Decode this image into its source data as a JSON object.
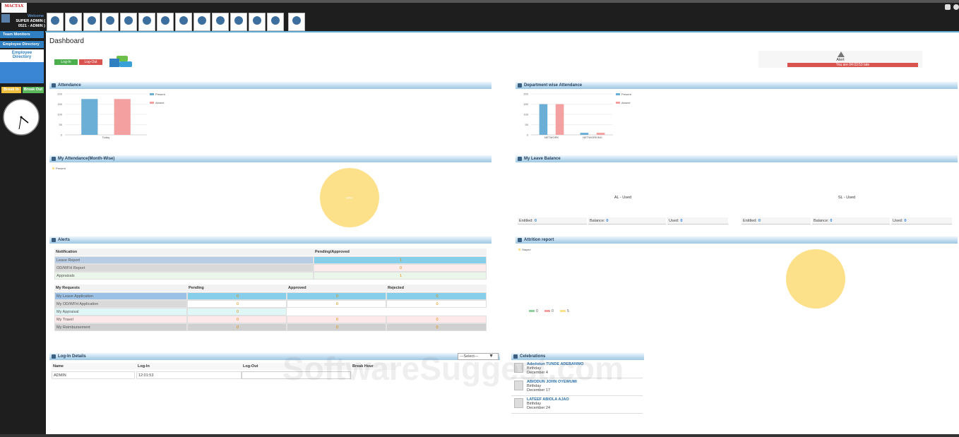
{
  "header": {
    "logo": "MACTAX",
    "welcome": "Welcome",
    "user": "SUPER ADMIN (",
    "role": "0521 - ADMIN )"
  },
  "sidebar": {
    "team_monitors": "Team Monitors",
    "employee_directory": "Employee Directory",
    "employee_directory_link": "Employee Directory",
    "break_in": "Break In",
    "break_out": "Break Out"
  },
  "page_title": "Dashboard",
  "buttons": {
    "log_in": "Log-In",
    "log_out": "Log-Out"
  },
  "alert": {
    "title": "Alert",
    "message": "You are 04:03:53 late"
  },
  "panels": {
    "my_leave_balance": "My Leave Balance",
    "alerts": "Alerts"
  },
  "leave_balance": [
    {
      "label": "AL - Used",
      "fields": [
        {
          "name": "Entitled:",
          "value": "0"
        },
        {
          "name": "Balance:",
          "value": "0"
        },
        {
          "name": "Used:",
          "value": "0"
        }
      ]
    },
    {
      "label": "SL - Used",
      "fields": [
        {
          "name": "Entitled:",
          "value": "0"
        },
        {
          "name": "Balance:",
          "value": "0"
        },
        {
          "name": "Used:",
          "value": "0"
        }
      ]
    }
  ],
  "alerts_table": {
    "header": [
      "Notification",
      "Pending/Approved"
    ],
    "rows": [
      [
        "Leave Report",
        "1"
      ],
      [
        "OD/WFH Report",
        "0"
      ],
      [
        "Appraisals",
        "1"
      ]
    ]
  },
  "requests_table": {
    "header": [
      "My Requests",
      "Pending",
      "Approved",
      "Rejected"
    ],
    "rows": [
      [
        "My Leave Application",
        "0",
        "0",
        "0"
      ],
      [
        "My OD/WFH Application",
        "0",
        "0",
        "0"
      ],
      [
        "My Appraisal",
        "0"
      ],
      [
        "My Travel",
        "0",
        "0",
        "0"
      ],
      [
        "My Reimbursement",
        "0",
        "0",
        "0"
      ]
    ]
  },
  "login_details": {
    "title": "Log-In Details",
    "select": "---Select---",
    "header": [
      "Name",
      "Log-In",
      "Log-Out",
      "Break Hour"
    ],
    "rows": [
      [
        "ADMIN",
        "12:01:53"
      ]
    ]
  },
  "celebrations": {
    "title": "Celebrations",
    "items": [
      {
        "name": "Adedotun TUNDE ADEBANWO",
        "event": "Birthday",
        "date": "December 4"
      },
      {
        "name": "ABIODUN JOHN OYEWUMI",
        "event": "Birthday",
        "date": "December 17"
      },
      {
        "name": "LATEEF ABIOLA AJAO",
        "event": "Birthday",
        "date": "December 24"
      }
    ]
  },
  "watermark": "SoftwareSuggest.com",
  "chart_data": [
    {
      "type": "bar",
      "title": "Attendance",
      "categories": [
        "Today"
      ],
      "series": [
        {
          "name": "Present",
          "color": "#6baed6",
          "values": [
            175
          ]
        },
        {
          "name": "Absent",
          "color": "#f4a0a0",
          "values": [
            175
          ]
        }
      ],
      "ylim": [
        0,
        200
      ],
      "yticks": [
        0,
        50,
        100,
        150,
        200
      ],
      "grid": true
    },
    {
      "type": "bar",
      "title": "Department wise Attendance",
      "categories": [
        "NETWORK",
        "NETWORKING"
      ],
      "series": [
        {
          "name": "Present",
          "color": "#6baed6",
          "values": [
            150,
            10
          ]
        },
        {
          "name": "Absent",
          "color": "#f4a0a0",
          "values": [
            150,
            10
          ]
        }
      ],
      "ylim": [
        0,
        200
      ],
      "yticks": [
        0,
        50,
        100,
        150,
        200
      ],
      "grid": true
    },
    {
      "type": "pie",
      "title": "My Attendance(Month-Wise)",
      "categories": [
        "Present"
      ],
      "values": [
        100
      ],
      "value_labels": [
        "100%"
      ],
      "colors": [
        "#fde08a"
      ]
    },
    {
      "type": "pie",
      "title": "Attrition report",
      "categories": [
        null,
        null,
        "Stayed"
      ],
      "values": [
        0,
        0,
        5
      ],
      "colors": [
        "#8fd19e",
        "#f4a0a0",
        "#fde08a"
      ],
      "value_legend": true
    }
  ]
}
